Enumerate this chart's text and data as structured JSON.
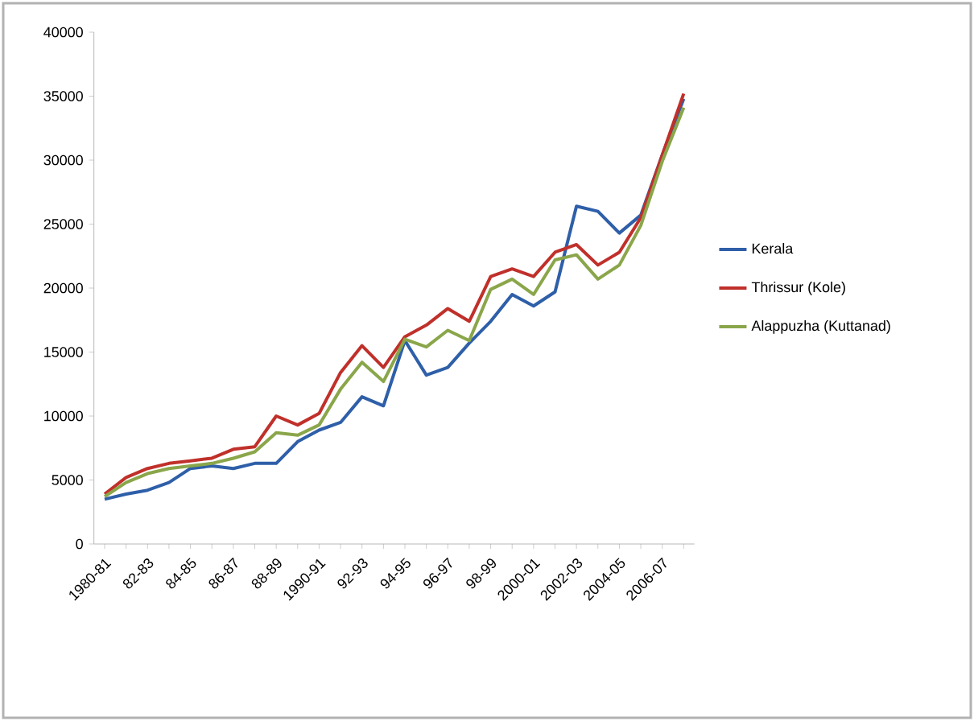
{
  "chart_data": {
    "type": "line",
    "categories": [
      "1980-81",
      null,
      "82-83",
      null,
      "84-85",
      null,
      "86-87",
      null,
      "88-89",
      null,
      "1990-91",
      null,
      "92-93",
      null,
      "94-95",
      null,
      "96-97",
      null,
      "98-99",
      null,
      "2000-01",
      null,
      "2002-03",
      null,
      "2004-05",
      null,
      "2006-07",
      null
    ],
    "series": [
      {
        "name": "Kerala",
        "color": "#2e5fa8",
        "values": [
          3500,
          3900,
          4200,
          4800,
          5900,
          6100,
          5900,
          6300,
          6300,
          8000,
          8900,
          9500,
          11500,
          10800,
          15900,
          13200,
          13800,
          15700,
          17400,
          19500,
          18600,
          19700,
          26400,
          26000,
          24300,
          25700,
          30400,
          34800
        ]
      },
      {
        "name": "Thrissur (Kole)",
        "color": "#c0302a",
        "values": [
          3900,
          5200,
          5900,
          6300,
          6500,
          6700,
          7400,
          7600,
          10000,
          9300,
          10200,
          13400,
          15500,
          13800,
          16200,
          17100,
          18400,
          17400,
          20900,
          21500,
          20900,
          22800,
          23400,
          21800,
          22800,
          25500,
          30400,
          35200
        ]
      },
      {
        "name": "Alappuzha (Kuttanad)",
        "color": "#8aa64a",
        "values": [
          3700,
          4800,
          5500,
          5900,
          6100,
          6300,
          6700,
          7200,
          8700,
          8500,
          9300,
          12100,
          14200,
          12700,
          16000,
          15400,
          16700,
          15900,
          19900,
          20700,
          19500,
          22200,
          22600,
          20700,
          21800,
          24900,
          29900,
          34100
        ]
      }
    ],
    "ylim": [
      0,
      40000
    ],
    "yticks": [
      0,
      5000,
      10000,
      15000,
      20000,
      25000,
      30000,
      35000,
      40000
    ],
    "legend": "right",
    "grid": false,
    "marker": "none",
    "line_style": "solid"
  }
}
